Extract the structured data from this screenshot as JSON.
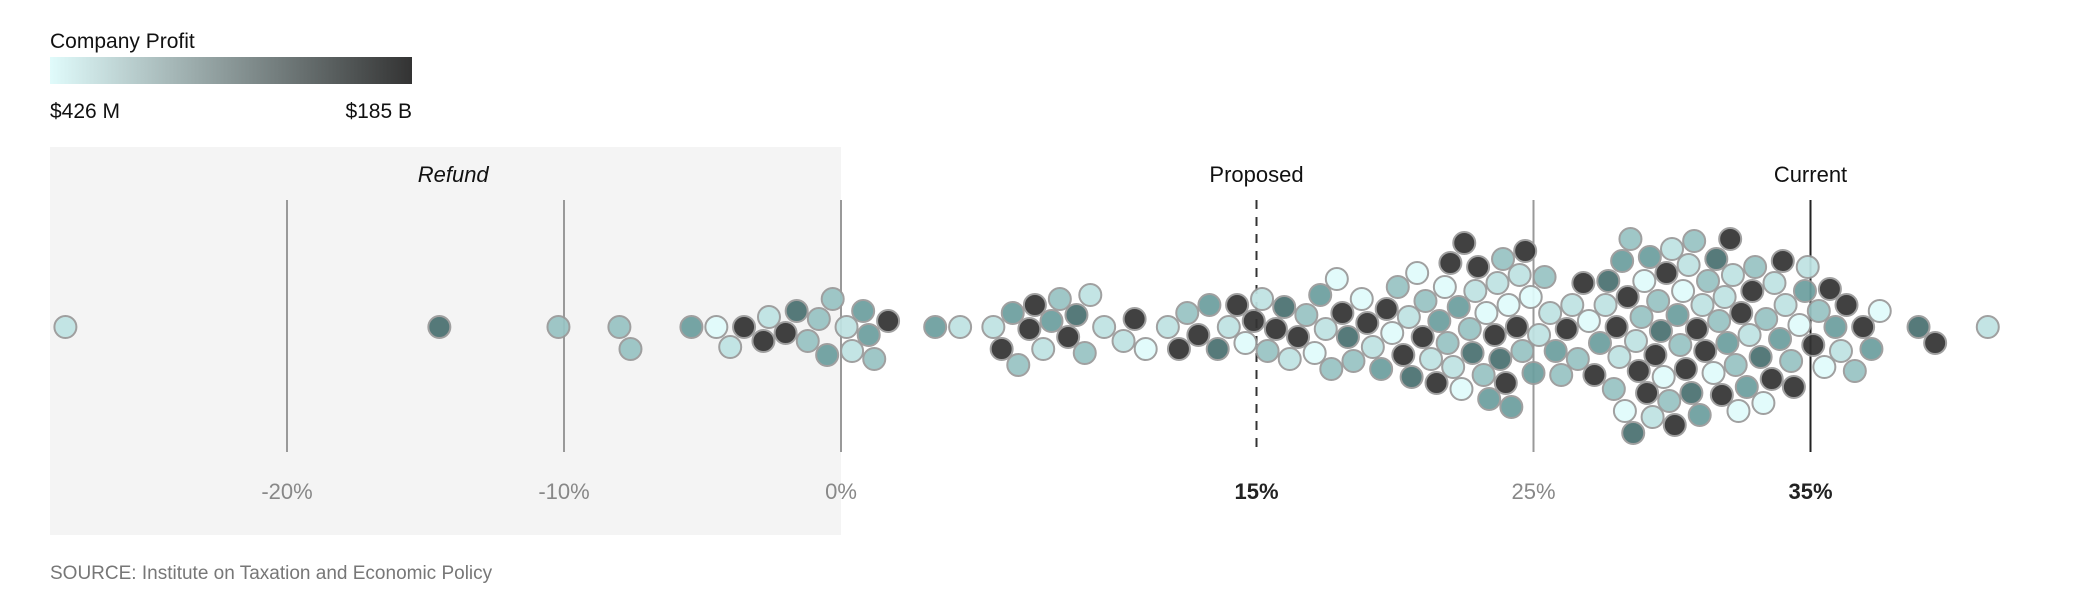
{
  "chart_data": {
    "type": "scatter",
    "subtype": "beeswarm",
    "legend": {
      "title": "Company Profit",
      "min_label": "$426 M",
      "max_label": "$185 B",
      "color_low": "#e0fbfb",
      "color_high": "#333333",
      "placement": "top-left"
    },
    "profit_level_colors": [
      "#e0fbfb",
      "#bfe3e3",
      "#98c3c3",
      "#6c9f9f",
      "#4a7070",
      "#333333"
    ],
    "xlim": [
      -29,
      42
    ],
    "ticks": [
      {
        "value": -20,
        "label": "-20%",
        "bold": false,
        "line": "solid-gray"
      },
      {
        "value": -10,
        "label": "-10%",
        "bold": false,
        "line": "solid-gray"
      },
      {
        "value": 0,
        "label": "0%",
        "bold": false,
        "line": "solid-gray"
      },
      {
        "value": 15,
        "label": "15%",
        "bold": true,
        "line": "dashed"
      },
      {
        "value": 25,
        "label": "25%",
        "bold": false,
        "line": "solid-gray"
      },
      {
        "value": 35,
        "label": "35%",
        "bold": true,
        "line": "solid-dark"
      }
    ],
    "annotations": [
      {
        "text": "Refund",
        "value": -14,
        "italic": true
      },
      {
        "text": "Proposed",
        "value": 15,
        "italic": false
      },
      {
        "text": "Current",
        "value": 35,
        "italic": false
      }
    ],
    "shaded_region": {
      "from": -29,
      "to": 0
    },
    "points_columns": [
      "tax_rate_percent",
      "profit_level"
    ],
    "points": [
      [
        -28,
        1
      ],
      [
        -14.5,
        4
      ],
      [
        -10.2,
        2
      ],
      [
        -8,
        2
      ],
      [
        -7.6,
        2
      ],
      [
        -5.4,
        3
      ],
      [
        -4.5,
        0
      ],
      [
        -4,
        1
      ],
      [
        -3.5,
        5
      ],
      [
        -2.8,
        5
      ],
      [
        -2.6,
        1
      ],
      [
        -2,
        5
      ],
      [
        -1.6,
        4
      ],
      [
        -1.2,
        2
      ],
      [
        -0.8,
        2
      ],
      [
        -0.5,
        3
      ],
      [
        -0.3,
        2
      ],
      [
        0.2,
        1
      ],
      [
        0.4,
        1
      ],
      [
        0.8,
        3
      ],
      [
        1.0,
        3
      ],
      [
        1.2,
        2
      ],
      [
        1.7,
        5
      ],
      [
        3.4,
        3
      ],
      [
        4.3,
        1
      ],
      [
        5.5,
        1
      ],
      [
        5.8,
        5
      ],
      [
        6.2,
        3
      ],
      [
        6.4,
        2
      ],
      [
        6.8,
        5
      ],
      [
        7.0,
        5
      ],
      [
        7.3,
        1
      ],
      [
        7.6,
        3
      ],
      [
        7.9,
        2
      ],
      [
        8.2,
        5
      ],
      [
        8.5,
        4
      ],
      [
        8.8,
        2
      ],
      [
        9.0,
        1
      ],
      [
        9.5,
        1
      ],
      [
        10.2,
        1
      ],
      [
        10.6,
        5
      ],
      [
        11.0,
        0
      ],
      [
        11.8,
        1
      ],
      [
        12.2,
        5
      ],
      [
        12.5,
        2
      ],
      [
        12.9,
        5
      ],
      [
        13.3,
        3
      ],
      [
        13.6,
        4
      ],
      [
        14.0,
        1
      ],
      [
        14.3,
        5
      ],
      [
        14.6,
        0
      ],
      [
        14.9,
        5
      ],
      [
        15.2,
        1
      ],
      [
        15.4,
        2
      ],
      [
        15.7,
        5
      ],
      [
        16.0,
        4
      ],
      [
        16.2,
        1
      ],
      [
        16.5,
        5
      ],
      [
        16.8,
        2
      ],
      [
        17.1,
        0
      ],
      [
        17.3,
        3
      ],
      [
        17.5,
        1
      ],
      [
        17.7,
        2
      ],
      [
        17.9,
        0
      ],
      [
        18.1,
        5
      ],
      [
        18.3,
        4
      ],
      [
        18.5,
        2
      ],
      [
        18.8,
        0
      ],
      [
        19.0,
        5
      ],
      [
        19.2,
        1
      ],
      [
        19.5,
        3
      ],
      [
        19.7,
        5
      ],
      [
        19.9,
        0
      ],
      [
        20.1,
        2
      ],
      [
        20.3,
        5
      ],
      [
        20.5,
        1
      ],
      [
        20.6,
        4
      ],
      [
        20.8,
        0
      ],
      [
        21.0,
        5
      ],
      [
        21.1,
        2
      ],
      [
        21.3,
        1
      ],
      [
        21.5,
        5
      ],
      [
        21.6,
        3
      ],
      [
        21.8,
        0
      ],
      [
        21.9,
        2
      ],
      [
        22.0,
        5
      ],
      [
        22.1,
        1
      ],
      [
        22.3,
        3
      ],
      [
        22.4,
        0
      ],
      [
        22.5,
        5
      ],
      [
        22.7,
        2
      ],
      [
        22.8,
        4
      ],
      [
        22.9,
        1
      ],
      [
        23.0,
        5
      ],
      [
        23.2,
        2
      ],
      [
        23.3,
        0
      ],
      [
        23.4,
        3
      ],
      [
        23.6,
        5
      ],
      [
        23.7,
        1
      ],
      [
        23.8,
        4
      ],
      [
        23.9,
        2
      ],
      [
        24.0,
        5
      ],
      [
        24.1,
        0
      ],
      [
        24.2,
        3
      ],
      [
        24.4,
        5
      ],
      [
        24.5,
        1
      ],
      [
        24.6,
        2
      ],
      [
        24.7,
        5
      ],
      [
        24.9,
        0
      ],
      [
        25.0,
        3
      ],
      [
        25.2,
        1
      ],
      [
        25.4,
        2
      ],
      [
        25.6,
        1
      ],
      [
        25.8,
        3
      ],
      [
        26.0,
        2
      ],
      [
        26.2,
        5
      ],
      [
        26.4,
        1
      ],
      [
        26.6,
        2
      ],
      [
        26.8,
        5
      ],
      [
        27.0,
        0
      ],
      [
        27.2,
        5
      ],
      [
        27.4,
        3
      ],
      [
        27.6,
        1
      ],
      [
        27.7,
        4
      ],
      [
        27.9,
        2
      ],
      [
        28.0,
        5
      ],
      [
        28.1,
        1
      ],
      [
        28.2,
        3
      ],
      [
        28.3,
        0
      ],
      [
        28.4,
        5
      ],
      [
        28.5,
        2
      ],
      [
        28.6,
        4
      ],
      [
        28.7,
        1
      ],
      [
        28.8,
        5
      ],
      [
        28.9,
        2
      ],
      [
        29.0,
        0
      ],
      [
        29.1,
        5
      ],
      [
        29.2,
        3
      ],
      [
        29.3,
        1
      ],
      [
        29.4,
        5
      ],
      [
        29.5,
        2
      ],
      [
        29.6,
        4
      ],
      [
        29.7,
        0
      ],
      [
        29.8,
        5
      ],
      [
        29.9,
        2
      ],
      [
        30.0,
        1
      ],
      [
        30.1,
        5
      ],
      [
        30.2,
        3
      ],
      [
        30.3,
        2
      ],
      [
        30.4,
        0
      ],
      [
        30.5,
        5
      ],
      [
        30.6,
        1
      ],
      [
        30.7,
        4
      ],
      [
        30.8,
        2
      ],
      [
        30.9,
        5
      ],
      [
        31.0,
        3
      ],
      [
        31.1,
        1
      ],
      [
        31.2,
        5
      ],
      [
        31.3,
        2
      ],
      [
        31.5,
        0
      ],
      [
        31.6,
        4
      ],
      [
        31.7,
        2
      ],
      [
        31.8,
        5
      ],
      [
        31.9,
        1
      ],
      [
        32.0,
        3
      ],
      [
        32.1,
        5
      ],
      [
        32.2,
        1
      ],
      [
        32.3,
        2
      ],
      [
        32.4,
        0
      ],
      [
        32.5,
        5
      ],
      [
        32.7,
        3
      ],
      [
        32.8,
        1
      ],
      [
        32.9,
        5
      ],
      [
        33.0,
        2
      ],
      [
        33.2,
        4
      ],
      [
        33.3,
        0
      ],
      [
        33.4,
        2
      ],
      [
        33.6,
        5
      ],
      [
        33.7,
        1
      ],
      [
        33.9,
        3
      ],
      [
        34.0,
        5
      ],
      [
        34.1,
        1
      ],
      [
        34.3,
        2
      ],
      [
        34.4,
        5
      ],
      [
        34.6,
        0
      ],
      [
        34.8,
        3
      ],
      [
        34.9,
        1
      ],
      [
        35.1,
        5
      ],
      [
        35.3,
        2
      ],
      [
        35.5,
        0
      ],
      [
        35.7,
        5
      ],
      [
        35.9,
        3
      ],
      [
        36.1,
        1
      ],
      [
        36.3,
        5
      ],
      [
        36.6,
        2
      ],
      [
        36.9,
        5
      ],
      [
        37.2,
        3
      ],
      [
        37.5,
        0
      ],
      [
        38.9,
        4
      ],
      [
        39.5,
        5
      ],
      [
        41.4,
        1
      ]
    ]
  },
  "source": "SOURCE: Institute on Taxation and Economic Policy"
}
